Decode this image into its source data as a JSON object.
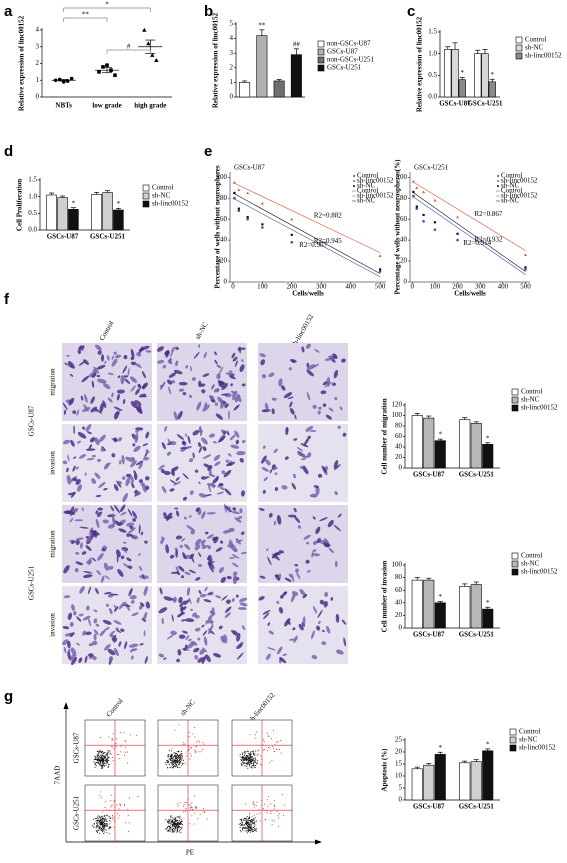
{
  "panels": [
    "a",
    "b",
    "c",
    "d",
    "e",
    "f",
    "g"
  ],
  "chart_data": [
    {
      "type": "dot",
      "ylabel": "Relative expression of linc00152",
      "categories": [
        "NBTs",
        "low grade",
        "high grade"
      ],
      "points": [
        [
          1.0,
          1.05,
          0.9,
          0.95,
          1.1
        ],
        [
          1.5,
          1.8,
          1.9,
          1.6,
          1.3
        ],
        [
          4.0,
          3.2,
          2.5,
          2.2
        ]
      ],
      "means": [
        1.0,
        1.6,
        3.0
      ],
      "errors": [
        0.05,
        0.15,
        0.4
      ],
      "annotations": [
        "*",
        "**",
        "#"
      ],
      "ylim": [
        0,
        4
      ],
      "yticks": [
        0,
        1,
        2,
        3,
        4
      ]
    },
    {
      "type": "bar",
      "ylabel": "Relative expression of linc00152",
      "categories": [
        "non-GSCs-U87",
        "GSCs-U87",
        "non-GSCs-U251",
        "GSCs-U251"
      ],
      "values": [
        1.0,
        4.2,
        1.1,
        2.9
      ],
      "errors": [
        0.1,
        0.4,
        0.1,
        0.4
      ],
      "colors": [
        "#ffffff",
        "#b0b0b0",
        "#6e6e6e",
        "#111111"
      ],
      "annotations": [
        null,
        "**",
        null,
        "##"
      ],
      "ylim": [
        0,
        5
      ],
      "yticks": [
        0,
        1,
        2,
        3,
        4,
        5
      ]
    },
    {
      "type": "grouped_bar",
      "ylabel": "Relative expression of linc00152",
      "categories": [
        "GSCs-U87",
        "GSCs-U251"
      ],
      "series": [
        {
          "name": "Control",
          "color": "#ffffff",
          "values": [
            1.1,
            1.0
          ],
          "errors": [
            0.06,
            0.08
          ],
          "annotations": [
            null,
            null
          ]
        },
        {
          "name": "sh-NC",
          "color": "#d8d8d8",
          "values": [
            1.1,
            1.0
          ],
          "errors": [
            0.15,
            0.1
          ],
          "annotations": [
            null,
            null
          ]
        },
        {
          "name": "sh-linc00152",
          "color": "#8a8a8a",
          "values": [
            0.4,
            0.35
          ],
          "errors": [
            0.05,
            0.06
          ],
          "annotations": [
            "*",
            "*"
          ]
        }
      ],
      "ylim": [
        0,
        1.5
      ],
      "yticks": [
        {
          "value": 0,
          "label": "0.0"
        },
        0.5,
        {
          "value": 1,
          "label": "1.0"
        },
        1.5
      ]
    },
    {
      "type": "grouped_bar",
      "ylabel": "Cell Proliferation",
      "categories": [
        "GSCs-U87",
        "GSCs-U251"
      ],
      "series": [
        {
          "name": "Control",
          "color": "#ffffff",
          "values": [
            1.05,
            1.07
          ],
          "errors": [
            0.06,
            0.06
          ],
          "annotations": [
            null,
            null
          ]
        },
        {
          "name": "sh-NC",
          "color": "#d0d0d0",
          "values": [
            0.97,
            1.12
          ],
          "errors": [
            0.05,
            0.06
          ],
          "annotations": [
            null,
            null
          ]
        },
        {
          "name": "sh-linc00152",
          "color": "#111111",
          "values": [
            0.62,
            0.6
          ],
          "errors": [
            0.05,
            0.05
          ],
          "annotations": [
            "*",
            "*"
          ]
        }
      ],
      "ylim": [
        0,
        1.5
      ],
      "yticks": [
        {
          "value": 0,
          "label": "0.0"
        },
        0.5,
        {
          "value": 1,
          "label": "1.0"
        },
        1.5
      ]
    },
    {
      "type": "scatter",
      "title": "GSCs-U87",
      "xlabel": "Cells/wells",
      "ylabel": "Percentage of wells without neurospheres",
      "x": [
        5,
        20,
        50,
        100,
        200,
        500
      ],
      "fit_x": [
        0,
        500
      ],
      "series": [
        {
          "name": "Control",
          "color": "#2f57b5",
          "values": [
            80,
            68,
            60,
            52,
            38,
            10
          ],
          "fit": [
            80,
            5
          ],
          "r2_label": "R2=0.907"
        },
        {
          "name": "sh-linc00152",
          "color": "#e0533f",
          "values": [
            95,
            88,
            85,
            75,
            60,
            25
          ],
          "fit": [
            95,
            28
          ],
          "r2_label": "R2=0.882"
        },
        {
          "name": "sh-NC",
          "color": "#111111",
          "values": [
            85,
            70,
            62,
            55,
            45,
            12
          ],
          "fit": [
            85,
            8
          ],
          "r2_label": "R2=0.945"
        }
      ],
      "xlim": [
        -10,
        520
      ],
      "xticks": [
        0,
        100,
        200,
        300,
        400,
        500
      ],
      "ylim": [
        0,
        105
      ],
      "yticks": [
        0,
        20,
        40,
        60,
        80,
        100
      ]
    },
    {
      "type": "scatter",
      "title": "GSCs-U251",
      "xlabel": "Cells/wells",
      "ylabel": "Percentage of wells without neurospheres(%)",
      "x": [
        5,
        20,
        50,
        100,
        200,
        500
      ],
      "fit_x": [
        0,
        500
      ],
      "series": [
        {
          "name": "Control",
          "color": "#2f57b5",
          "values": [
            82,
            70,
            58,
            50,
            40,
            12
          ],
          "fit": [
            82,
            7
          ],
          "r2_label": "R2=0.914"
        },
        {
          "name": "sh-linc00152",
          "color": "#e0533f",
          "values": [
            96,
            90,
            86,
            78,
            62,
            26
          ],
          "fit": [
            96,
            30
          ],
          "r2_label": "R2=0.867"
        },
        {
          "name": "sh-NC",
          "color": "#111111",
          "values": [
            86,
            72,
            64,
            57,
            46,
            14
          ],
          "fit": [
            86,
            10
          ],
          "r2_label": "R2=0.932"
        }
      ],
      "xlim": [
        -10,
        520
      ],
      "xticks": [
        0,
        100,
        200,
        300,
        400,
        500
      ],
      "ylim": [
        0,
        105
      ],
      "yticks": [
        0,
        20,
        40,
        60,
        80,
        100
      ]
    },
    {
      "type": "grouped_bar",
      "ylabel": "Cell number of migration",
      "categories": [
        "GSCs-U87",
        "GSCs-U251"
      ],
      "series": [
        {
          "name": "Control",
          "color": "#ffffff",
          "values": [
            100,
            92
          ],
          "errors": [
            4,
            4
          ],
          "annotations": [
            null,
            null
          ]
        },
        {
          "name": "sh-NC",
          "color": "#b8b8b8",
          "values": [
            95,
            85
          ],
          "errors": [
            4,
            3
          ],
          "annotations": [
            null,
            null
          ]
        },
        {
          "name": "sh-linc00152",
          "color": "#111111",
          "values": [
            52,
            45
          ],
          "errors": [
            3,
            3
          ],
          "annotations": [
            "*",
            "*"
          ]
        }
      ],
      "ylim": [
        0,
        120
      ],
      "yticks": [
        0,
        20,
        40,
        60,
        80,
        100,
        120
      ]
    },
    {
      "type": "grouped_bar",
      "ylabel": "Cell number of invasion",
      "categories": [
        "GSCs-U87",
        "GSCs-U251"
      ],
      "series": [
        {
          "name": "Control",
          "color": "#ffffff",
          "values": [
            76,
            66
          ],
          "errors": [
            4,
            4
          ],
          "annotations": [
            null,
            null
          ]
        },
        {
          "name": "sh-NC",
          "color": "#b8b8b8",
          "values": [
            76,
            69
          ],
          "errors": [
            3,
            4
          ],
          "annotations": [
            null,
            null
          ]
        },
        {
          "name": "sh-linc00152",
          "color": "#111111",
          "values": [
            40,
            30
          ],
          "errors": [
            2,
            3
          ],
          "annotations": [
            "*",
            "*"
          ]
        }
      ],
      "ylim": [
        0,
        100
      ],
      "yticks": [
        0,
        20,
        40,
        60,
        80,
        100
      ]
    },
    {
      "type": "grouped_bar",
      "ylabel": "Apoptosis (%)",
      "categories": [
        "GSCs-U87",
        "GSCs-U251"
      ],
      "series": [
        {
          "name": "Control",
          "color": "#ffffff",
          "values": [
            13,
            15.5
          ],
          "errors": [
            0.7,
            0.7
          ],
          "annotations": [
            null,
            null
          ]
        },
        {
          "name": "sh-NC",
          "color": "#d0d0d0",
          "values": [
            14.5,
            16
          ],
          "errors": [
            0.7,
            0.8
          ],
          "annotations": [
            null,
            null
          ]
        },
        {
          "name": "sh-linc00152",
          "color": "#111111",
          "values": [
            19,
            20.5
          ],
          "errors": [
            0.9,
            0.8
          ],
          "annotations": [
            "*",
            "*"
          ]
        }
      ],
      "ylim": [
        0,
        25
      ],
      "yticks": [
        0,
        5,
        10,
        15,
        20,
        25
      ]
    }
  ],
  "micrographs": {
    "columns": [
      "Control",
      "sh-NC",
      "sh-linc00152"
    ],
    "rows": [
      "migration",
      "invasion",
      "migration",
      "invasion"
    ],
    "groups": [
      "GSCs-U87",
      "GSCs-U251"
    ]
  },
  "flow": {
    "columns": [
      "Control",
      "sh-NC",
      "sh-linc00152"
    ],
    "rows": [
      "GSCs-U87",
      "GSCs-U251"
    ],
    "y_label": "7AAD",
    "x_label": "PE"
  }
}
